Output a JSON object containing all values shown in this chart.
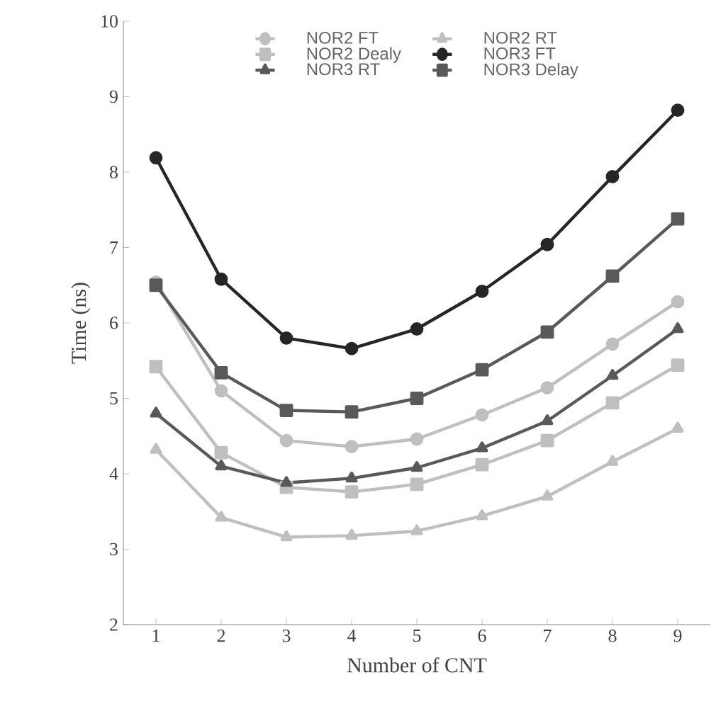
{
  "chart_data": {
    "type": "line",
    "xlabel": "Number of CNT",
    "ylabel": "Time (ns)",
    "categories": [
      "1",
      "2",
      "3",
      "4",
      "5",
      "6",
      "7",
      "8",
      "9"
    ],
    "ylim": [
      2,
      10
    ],
    "yticks": [
      2,
      3,
      4,
      5,
      6,
      7,
      8,
      9,
      10
    ],
    "grid": false,
    "legend": "top",
    "line_style": "solid",
    "series": [
      {
        "name": "NOR2 FT",
        "color": "#bfbfbf",
        "marker": "circle",
        "values": [
          6.54,
          5.1,
          4.44,
          4.36,
          4.46,
          4.78,
          5.14,
          5.72,
          6.28
        ]
      },
      {
        "name": "NOR2 RT",
        "color": "#bfbfbf",
        "marker": "triangle",
        "values": [
          4.32,
          3.42,
          3.16,
          3.18,
          3.24,
          3.44,
          3.7,
          4.16,
          4.6
        ]
      },
      {
        "name": "NOR2 Dealy",
        "color": "#bfbfbf",
        "marker": "square",
        "values": [
          5.42,
          4.28,
          3.82,
          3.76,
          3.86,
          4.12,
          4.44,
          4.94,
          5.44
        ]
      },
      {
        "name": "NOR3 FT",
        "color": "#262626",
        "marker": "circle",
        "values": [
          8.19,
          6.58,
          5.8,
          5.66,
          5.92,
          6.42,
          7.04,
          7.94,
          8.82
        ]
      },
      {
        "name": "NOR3 RT",
        "color": "#595959",
        "marker": "triangle",
        "values": [
          4.8,
          4.1,
          3.88,
          3.94,
          4.08,
          4.34,
          4.7,
          5.3,
          5.92
        ]
      },
      {
        "name": "NOR3 Delay",
        "color": "#595959",
        "marker": "square",
        "values": [
          6.5,
          5.34,
          4.84,
          4.82,
          5.0,
          5.38,
          5.88,
          6.62,
          7.38
        ]
      }
    ]
  }
}
